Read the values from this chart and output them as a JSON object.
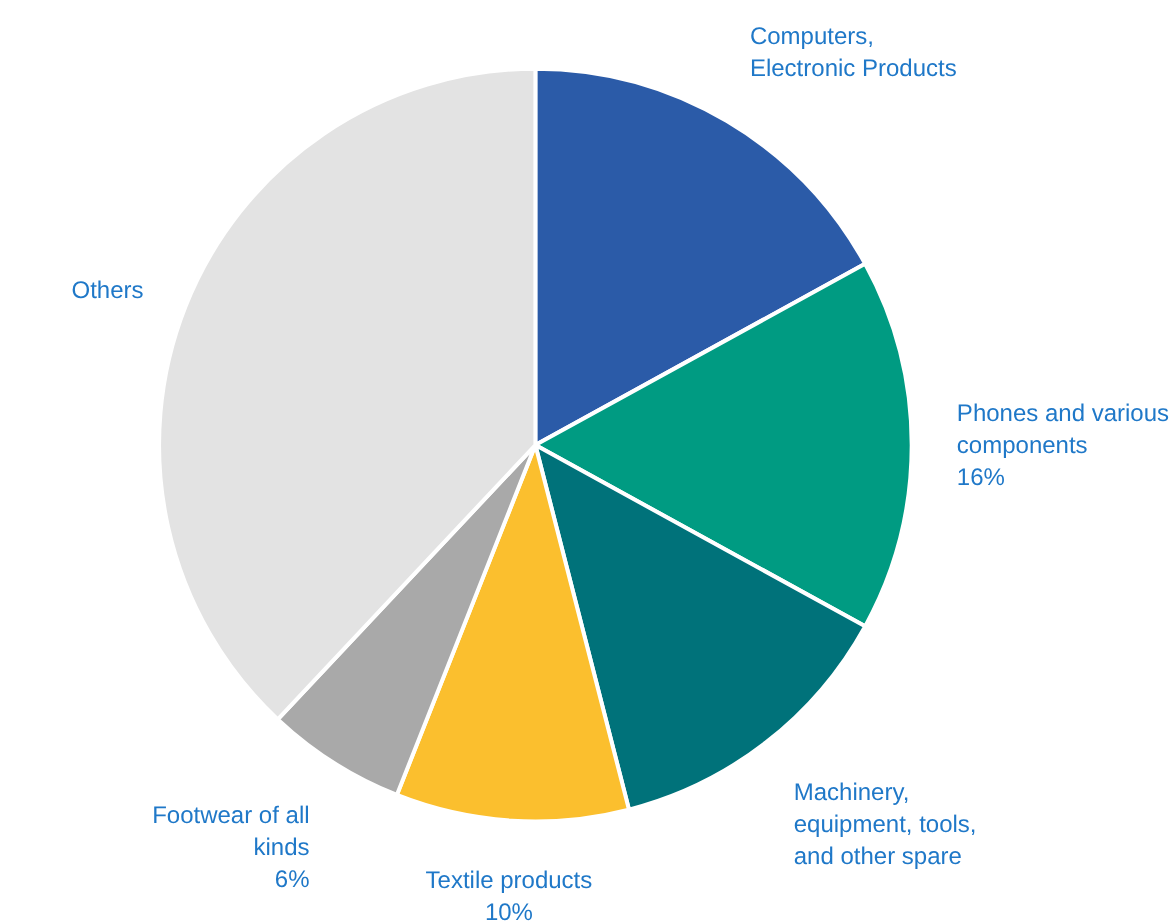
{
  "chart_data": {
    "type": "pie",
    "categories": [
      "Computers, Electronic Products",
      "Phones and various components",
      "Machinery, equipment, tools, and other spare",
      "Textile products",
      "Footwear of all kinds",
      "Others"
    ],
    "values": [
      17,
      16,
      13,
      10,
      6,
      38
    ],
    "colors": [
      "#2b5ba8",
      "#009b82",
      "#00727a",
      "#fbbf2e",
      "#a9a9a9",
      "#e3e3e3"
    ],
    "value_labels": [
      null,
      "16%",
      null,
      "10%",
      "6%",
      null
    ]
  }
}
